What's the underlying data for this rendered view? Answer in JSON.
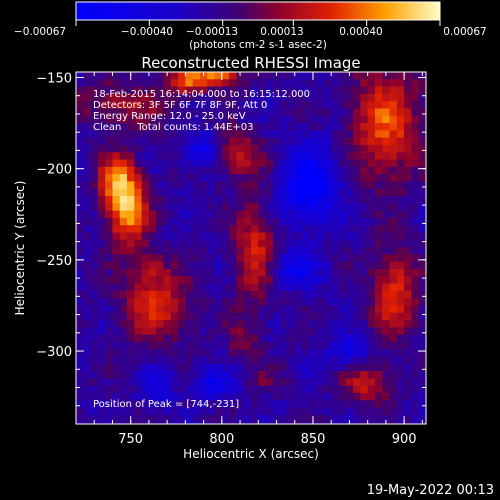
{
  "chart_data": {
    "type": "heatmap",
    "title": "Reconstructed RHESSI Image",
    "xlabel": "Heliocentric X (arcsec)",
    "ylabel": "Heliocentric Y (arcsec)",
    "xlim": [
      720,
      912
    ],
    "ylim": [
      -340,
      -147
    ],
    "x_ticks": [
      750,
      800,
      850,
      900
    ],
    "y_ticks": [
      -150,
      -200,
      -250,
      -300
    ],
    "x_tick_labels": [
      "750",
      "800",
      "850",
      "900"
    ],
    "y_tick_labels": [
      "-150",
      "-200",
      "-250",
      "-300"
    ],
    "colorbar": {
      "min": -0.00067,
      "max": 0.00067,
      "ticks": [
        -0.00067,
        -0.0004,
        -0.00013,
        0.00013,
        0.0004,
        0.00067
      ],
      "tick_labels": [
        "-0.00067",
        "-0.00040",
        "-0.00013",
        "0.00013",
        "0.00040",
        "0.00067"
      ],
      "units_label": "(photons cm-2 s-1 asec-2)"
    },
    "annotations": [
      "18-Feb-2015 16:14:04.000 to 16:15:12.000",
      "Detectors: 3F 5F 6F 7F 8F 9F, Att 0",
      "Energy Range: 12.0 - 25.0 keV",
      "Clean     Total counts: 1.44E+03"
    ],
    "peak_label": "Position of Peak = [744,-231]",
    "peak": [
      744,
      -231
    ],
    "sources": [
      {
        "x": 748,
        "y": -222,
        "sx": 8,
        "sy": 14,
        "amp": 0.00067
      },
      {
        "x": 742,
        "y": -205,
        "sx": 7,
        "sy": 9,
        "amp": 0.00045
      },
      {
        "x": 745,
        "y": -165,
        "sx": 18,
        "sy": 9,
        "amp": 0.00028
      },
      {
        "x": 780,
        "y": -152,
        "sx": 7,
        "sy": 5,
        "amp": 0.00045
      },
      {
        "x": 797,
        "y": -148,
        "sx": 9,
        "sy": 5,
        "amp": 0.0006
      },
      {
        "x": 808,
        "y": -192,
        "sx": 10,
        "sy": 9,
        "amp": 0.00035
      },
      {
        "x": 818,
        "y": -245,
        "sx": 8,
        "sy": 20,
        "amp": 0.0004
      },
      {
        "x": 812,
        "y": -295,
        "sx": 6,
        "sy": 9,
        "amp": 0.00022
      },
      {
        "x": 764,
        "y": -275,
        "sx": 13,
        "sy": 13,
        "amp": 0.00042
      },
      {
        "x": 760,
        "y": -255,
        "sx": 7,
        "sy": 7,
        "amp": 0.00025
      },
      {
        "x": 890,
        "y": -175,
        "sx": 13,
        "sy": 22,
        "amp": 0.0005
      },
      {
        "x": 895,
        "y": -268,
        "sx": 9,
        "sy": 17,
        "amp": 0.00045
      },
      {
        "x": 880,
        "y": -318,
        "sx": 10,
        "sy": 8,
        "amp": 0.00035
      },
      {
        "x": 826,
        "y": -316,
        "sx": 7,
        "sy": 5,
        "amp": 0.00015
      }
    ],
    "negative_sources": [
      {
        "x": 848,
        "y": -210,
        "sx": 10,
        "sy": 14,
        "amp": -0.00055
      },
      {
        "x": 840,
        "y": -255,
        "sx": 9,
        "sy": 7,
        "amp": -0.00035
      },
      {
        "x": 790,
        "y": -190,
        "sx": 7,
        "sy": 6,
        "amp": -0.0004
      },
      {
        "x": 795,
        "y": -318,
        "sx": 8,
        "sy": 5,
        "amp": -0.00035
      },
      {
        "x": 870,
        "y": -300,
        "sx": 8,
        "sy": 6,
        "amp": -0.0003
      },
      {
        "x": 765,
        "y": -320,
        "sx": 6,
        "sy": 6,
        "amp": -0.00025
      }
    ]
  },
  "footer": {
    "date": "19-May-2022 00:13"
  }
}
